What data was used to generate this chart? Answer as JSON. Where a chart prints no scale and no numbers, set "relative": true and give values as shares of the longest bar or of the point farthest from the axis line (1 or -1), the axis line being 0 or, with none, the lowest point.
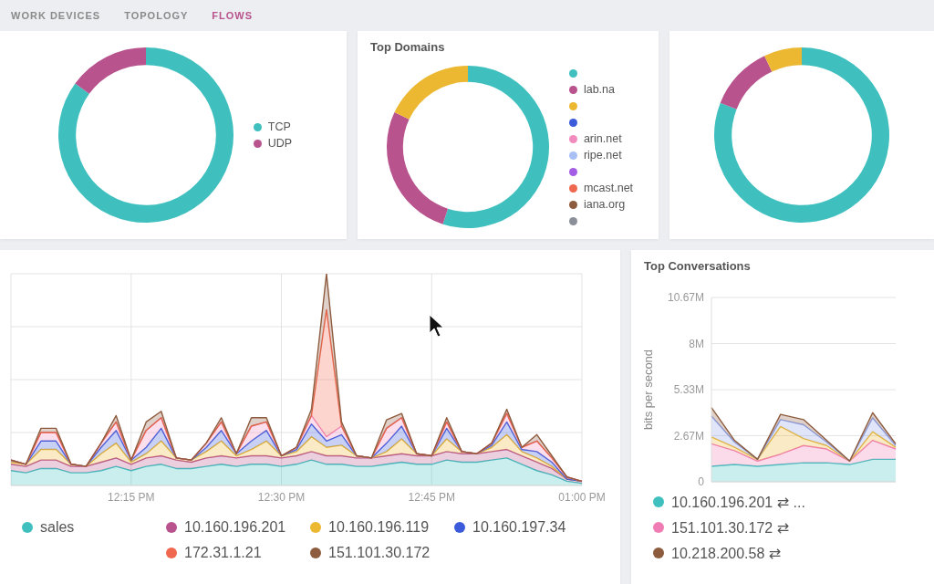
{
  "chart_data": [
    {
      "type": "donut",
      "annotations": [
        "WORK DEVICES",
        "TOPOLOGY",
        "FLOWS"
      ],
      "categories": [
        "TCP",
        "UDP"
      ],
      "values": [
        85,
        15
      ],
      "colors": [
        "#3fc0bf",
        "#b8538d"
      ],
      "legend": "right"
    },
    {
      "type": "donut",
      "title": "Top Domains",
      "categories": [
        null,
        "lab.na",
        null,
        null,
        "arin.net",
        "ripe.net",
        null,
        "mcast.net",
        "iana.org",
        null
      ],
      "values": [
        55,
        27,
        18,
        0,
        0,
        0,
        0,
        0,
        0,
        0
      ],
      "colors": [
        "#3fc0bf",
        "#b8538d",
        "#ecb731",
        "#3b5bdb",
        "#f28cbf",
        "#a8c0f5",
        "#a45ee5",
        "#f0674f",
        "#8d5b3e",
        "#8a8f99"
      ],
      "legend": "right"
    },
    {
      "type": "donut",
      "categories": [
        null,
        null,
        null
      ],
      "values": [
        81,
        12,
        7
      ],
      "colors": [
        "#3fc0bf",
        "#b8538d",
        "#ecb731"
      ]
    },
    {
      "type": "area",
      "stacked": true,
      "relative": true,
      "x": [
        12.05,
        12.075,
        12.1,
        12.125,
        12.15,
        12.175,
        12.2,
        12.225,
        12.25,
        12.275,
        12.3,
        12.325,
        12.35,
        12.375,
        12.4,
        12.425,
        12.45,
        12.475,
        12.5,
        12.525,
        12.55,
        12.575,
        12.6,
        12.625,
        12.65,
        12.675,
        12.7,
        12.725,
        12.75,
        12.775,
        12.8,
        12.825,
        12.85,
        12.875,
        12.9,
        12.925,
        12.95,
        12.975,
        13
      ],
      "xlim": [
        12.05,
        13
      ],
      "xticks": [
        {
          "value": 12.25,
          "label": "12:15 PM"
        },
        {
          "value": 12.5,
          "label": "12:30 PM"
        },
        {
          "value": 12.75,
          "label": "12:45 PM"
        },
        {
          "value": 13,
          "label": "01:00 PM"
        }
      ],
      "grid": true,
      "legend": "bottom",
      "series": [
        {
          "name": "sales",
          "color": "#3fc0bf",
          "values": [
            0.07,
            0.06,
            0.08,
            0.08,
            0.06,
            0.06,
            0.07,
            0.09,
            0.07,
            0.09,
            0.1,
            0.08,
            0.08,
            0.09,
            0.1,
            0.09,
            0.1,
            0.1,
            0.09,
            0.1,
            0.12,
            0.1,
            0.1,
            0.09,
            0.09,
            0.1,
            0.11,
            0.1,
            0.1,
            0.12,
            0.11,
            0.11,
            0.12,
            0.13,
            0.1,
            0.07,
            0.05,
            0.02,
            0.01
          ]
        },
        {
          "name": "10.160.196.201",
          "color": "#b8538d",
          "values": [
            0.03,
            0.03,
            0.04,
            0.04,
            0.03,
            0.03,
            0.04,
            0.04,
            0.03,
            0.04,
            0.04,
            0.04,
            0.03,
            0.04,
            0.04,
            0.04,
            0.04,
            0.04,
            0.04,
            0.04,
            0.04,
            0.04,
            0.04,
            0.04,
            0.04,
            0.04,
            0.04,
            0.04,
            0.04,
            0.04,
            0.04,
            0.04,
            0.04,
            0.04,
            0.04,
            0.04,
            0.03,
            0.01,
            0.01
          ]
        },
        {
          "name": "10.160.196.119",
          "color": "#ecb731",
          "values": [
            0.01,
            0.01,
            0.05,
            0.05,
            0.01,
            0,
            0.04,
            0.07,
            0.01,
            0.02,
            0.07,
            0.01,
            0.01,
            0.03,
            0.07,
            0.01,
            0.03,
            0.07,
            0.01,
            0.02,
            0.07,
            0.04,
            0.05,
            0.01,
            0,
            0.02,
            0.07,
            0.01,
            0,
            0.06,
            0.01,
            0,
            0.02,
            0.07,
            0.02,
            0.02,
            0.01,
            0,
            0
          ]
        },
        {
          "name": "10.160.197.34",
          "color": "#3b5bdb",
          "values": [
            0.01,
            0,
            0.04,
            0.04,
            0,
            0,
            0.03,
            0.06,
            0.01,
            0.03,
            0.06,
            0,
            0,
            0.02,
            0.05,
            0.01,
            0.04,
            0.05,
            0,
            0.01,
            0.06,
            0.03,
            0.05,
            0,
            0,
            0.04,
            0.06,
            0,
            0,
            0.05,
            0,
            0,
            0.01,
            0.06,
            0.01,
            0.03,
            0.02,
            0,
            0
          ]
        },
        {
          "color": "#f28cbf",
          "values": [
            0,
            0,
            0.04,
            0.04,
            0,
            0,
            0.02,
            0.04,
            0,
            0.08,
            0.05,
            0,
            0,
            0.02,
            0.04,
            0,
            0.07,
            0.04,
            0,
            0.01,
            0.04,
            0.02,
            0.04,
            0,
            0,
            0.07,
            0.04,
            0,
            0,
            0.03,
            0,
            0,
            0.01,
            0.04,
            0.01,
            0.05,
            0.02,
            0.01,
            0
          ]
        },
        {
          "name": "172.31.1.21",
          "color": "#f0674f",
          "values": [
            0,
            0,
            0,
            0,
            0,
            0,
            0,
            0,
            0,
            0,
            0,
            0,
            0,
            0,
            0,
            0,
            0,
            0,
            0,
            0,
            0,
            0.6,
            0,
            0,
            0,
            0,
            0,
            0,
            0,
            0,
            0,
            0,
            0,
            0,
            0,
            0,
            0,
            0,
            0
          ]
        },
        {
          "name": "151.101.30.172",
          "color": "#8d5b3e",
          "values": [
            0,
            0,
            0.02,
            0.02,
            0,
            0,
            0,
            0.03,
            0,
            0.04,
            0.03,
            0,
            0,
            0,
            0.02,
            0,
            0.04,
            0.02,
            0,
            0,
            0.03,
            0.17,
            0.02,
            0,
            0,
            0.04,
            0.02,
            0,
            0,
            0.02,
            0,
            0,
            0,
            0.02,
            0,
            0.03,
            0.01,
            0,
            0
          ]
        }
      ]
    },
    {
      "type": "area",
      "title": "Top Conversations",
      "ylabel": "bits per second",
      "stacked": true,
      "categories": [
        null,
        null,
        null,
        null,
        null,
        null,
        null,
        null,
        null
      ],
      "ylim": [
        0,
        10670000
      ],
      "yticks": [
        0,
        {
          "value": 2670000,
          "label": "2.67M"
        },
        {
          "value": 5330000,
          "label": "5.33M"
        },
        {
          "value": 8000000,
          "label": "8M"
        },
        {
          "value": 10670000,
          "label": "10.67M"
        }
      ],
      "grid": "y",
      "tick_labels": "y",
      "legend": "bottom",
      "series": [
        {
          "name": "10.160.196.201 ⇄ ...",
          "color": "#3fc0bf",
          "values": [
            900000,
            1000000,
            900000,
            1000000,
            1100000,
            1100000,
            1000000,
            1300000,
            1300000
          ]
        },
        {
          "name": "151.101.30.172 ⇄",
          "color": "#f07cb4",
          "values": [
            1300000,
            800000,
            300000,
            600000,
            1000000,
            800000,
            200000,
            1100000,
            600000
          ]
        },
        {
          "color": "#ecb731",
          "values": [
            400000,
            200000,
            100000,
            1600000,
            400000,
            200000,
            0,
            500000,
            100000
          ]
        },
        {
          "color": "#8fa3e8",
          "values": [
            1200000,
            300000,
            0,
            400000,
            800000,
            200000,
            0,
            800000,
            100000
          ]
        },
        {
          "name": "10.218.200.58 ⇄",
          "color": "#8d5b3e",
          "values": [
            500000,
            100000,
            0,
            300000,
            300000,
            100000,
            0,
            300000,
            100000
          ]
        }
      ]
    }
  ]
}
